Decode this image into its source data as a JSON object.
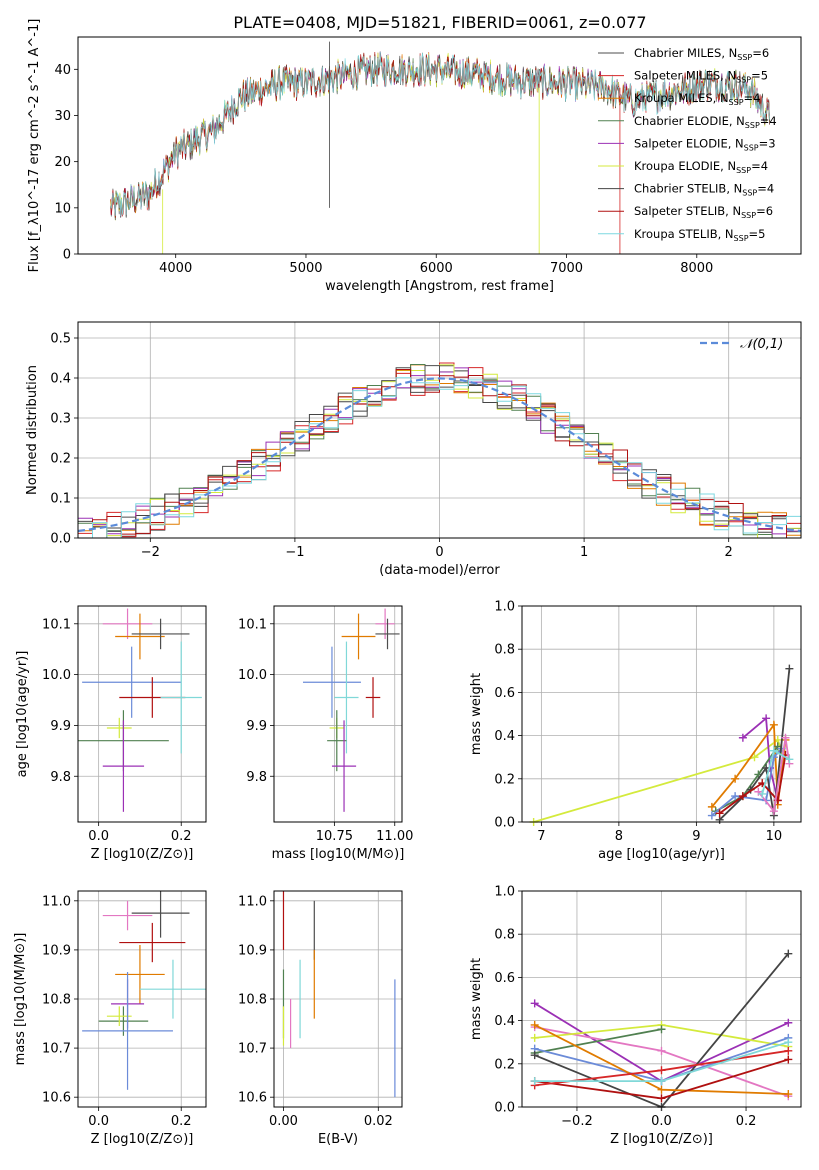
{
  "figure_title": "PLATE=0408, MJD=51821, FIBERID=0061, z=0.077",
  "colors": {
    "c0": "#4d4d4d",
    "c1": "#d62728",
    "c2": "#e07b00",
    "c3": "#508050",
    "c4": "#9b30b5",
    "c5": "#d4ea3c",
    "c6": "#444444",
    "c7": "#b01010",
    "c8": "#7dd8e0",
    "c9": "#e377c2",
    "c10": "#6b8bd8",
    "c11": "#80d8d8",
    "normal": "#5b8bd9"
  },
  "chart_data": [
    {
      "id": "spectrum",
      "type": "line",
      "title": "",
      "xlabel": "wavelength [Angstrom, rest frame]",
      "ylabel": "Flux [f_λ10^-17 erg cm^-2 s^-1 A^-1]",
      "xlim": [
        3250,
        8800
      ],
      "ylim": [
        0,
        47
      ],
      "xticks": [
        4000,
        5000,
        6000,
        7000,
        8000
      ],
      "yticks": [
        0,
        10,
        20,
        30,
        40
      ],
      "grid": false,
      "legend_position": "top-right",
      "continuum_points": [
        [
          3500,
          10
        ],
        [
          3800,
          13
        ],
        [
          4000,
          22
        ],
        [
          4300,
          27
        ],
        [
          4500,
          34
        ],
        [
          4800,
          37
        ],
        [
          5000,
          37
        ],
        [
          5200,
          38
        ],
        [
          5500,
          40
        ],
        [
          5800,
          40
        ],
        [
          6000,
          40
        ],
        [
          6300,
          39
        ],
        [
          6600,
          37.5
        ],
        [
          7000,
          37
        ],
        [
          7300,
          36
        ],
        [
          7500,
          33
        ],
        [
          7800,
          35
        ],
        [
          8100,
          37
        ],
        [
          8400,
          36
        ],
        [
          8550,
          30
        ]
      ],
      "series": [
        {
          "name": "Chabrier MILES, N_SSP=6",
          "color_key": "c0"
        },
        {
          "name": "Salpeter MILES, N_SSP=5",
          "color_key": "c1"
        },
        {
          "name": "Kroupa MILES, N_SSP=4",
          "color_key": "c2"
        },
        {
          "name": "Chabrier ELODIE, N_SSP=4",
          "color_key": "c3"
        },
        {
          "name": "Salpeter ELODIE, N_SSP=3",
          "color_key": "c4"
        },
        {
          "name": "Kroupa ELODIE, N_SSP=4",
          "color_key": "c5"
        },
        {
          "name": "Chabrier STELIB, N_SSP=4",
          "color_key": "c6"
        },
        {
          "name": "Salpeter STELIB, N_SSP=6",
          "color_key": "c7"
        },
        {
          "name": "Kroupa STELIB, N_SSP=5",
          "color_key": "c8"
        }
      ]
    },
    {
      "id": "residuals",
      "type": "histogram",
      "title": "",
      "xlabel": "(data-model)/error",
      "ylabel": "Normed distribution",
      "xlim": [
        -2.5,
        2.5
      ],
      "ylim": [
        0,
        0.54
      ],
      "xticks": [
        -2,
        -1,
        0,
        1,
        2
      ],
      "yticks": [
        0.0,
        0.1,
        0.2,
        0.3,
        0.4,
        0.5
      ],
      "grid": true,
      "legend_position": "top-right",
      "reference_curve": {
        "name": "𝒩(0,1)",
        "mean": 0,
        "sigma": 1
      },
      "bin_width": 0.1
    },
    {
      "id": "age_vs_Z",
      "type": "scatter",
      "xlabel": "Z [log10(Z/Z⊙)]",
      "ylabel": "age  [log10(age/yr)]",
      "xlim": [
        -0.05,
        0.26
      ],
      "ylim": [
        9.71,
        10.135
      ],
      "xticks": [
        0.0,
        0.2
      ],
      "yticks": [
        9.8,
        9.9,
        10.0,
        10.1
      ],
      "grid": true,
      "points": [
        {
          "x": 0.07,
          "y": 10.1,
          "xerr": 0.06,
          "yerr": 0.03,
          "color_key": "c9"
        },
        {
          "x": 0.1,
          "y": 10.075,
          "xerr": 0.06,
          "yerr": 0.045,
          "color_key": "c2"
        },
        {
          "x": 0.15,
          "y": 10.08,
          "xerr": 0.07,
          "yerr": 0.03,
          "color_key": "c0"
        },
        {
          "x": 0.08,
          "y": 9.985,
          "xerr": 0.12,
          "yerr": 0.07,
          "color_key": "c10"
        },
        {
          "x": 0.13,
          "y": 9.955,
          "xerr": 0.08,
          "yerr": 0.04,
          "color_key": "c7"
        },
        {
          "x": 0.2,
          "y": 9.955,
          "xerr": 0.05,
          "yerr": 0.11,
          "color_key": "c11"
        },
        {
          "x": 0.05,
          "y": 9.895,
          "xerr": 0.03,
          "yerr": 0.02,
          "color_key": "c5"
        },
        {
          "x": 0.06,
          "y": 9.87,
          "xerr": 0.11,
          "yerr": 0.06,
          "color_key": "c3"
        },
        {
          "x": 0.06,
          "y": 9.82,
          "xerr": 0.05,
          "yerr": 0.09,
          "color_key": "c4"
        }
      ]
    },
    {
      "id": "age_vs_mass",
      "type": "scatter",
      "xlabel": "mass [log10(M/M⊙)]",
      "ylabel": "",
      "xlim": [
        10.5,
        11.03
      ],
      "ylim": [
        9.71,
        10.135
      ],
      "xticks": [
        10.75,
        11.0
      ],
      "yticks": [
        9.8,
        9.9,
        10.0,
        10.1
      ],
      "grid": true,
      "points": [
        {
          "x": 10.96,
          "y": 10.1,
          "xerr": 0.04,
          "yerr": 0.03,
          "color_key": "c9"
        },
        {
          "x": 10.85,
          "y": 10.075,
          "xerr": 0.07,
          "yerr": 0.045,
          "color_key": "c2"
        },
        {
          "x": 10.97,
          "y": 10.08,
          "xerr": 0.05,
          "yerr": 0.03,
          "color_key": "c0"
        },
        {
          "x": 10.74,
          "y": 9.985,
          "xerr": 0.12,
          "yerr": 0.07,
          "color_key": "c10"
        },
        {
          "x": 10.91,
          "y": 9.955,
          "xerr": 0.03,
          "yerr": 0.04,
          "color_key": "c7"
        },
        {
          "x": 10.8,
          "y": 9.955,
          "xerr": 0.05,
          "yerr": 0.11,
          "color_key": "c11"
        },
        {
          "x": 10.76,
          "y": 9.895,
          "xerr": 0.03,
          "yerr": 0.02,
          "color_key": "c5"
        },
        {
          "x": 10.76,
          "y": 9.87,
          "xerr": 0.04,
          "yerr": 0.06,
          "color_key": "c3"
        },
        {
          "x": 10.79,
          "y": 9.82,
          "xerr": 0.05,
          "yerr": 0.09,
          "color_key": "c4"
        }
      ]
    },
    {
      "id": "mass_weight_vs_age",
      "type": "line",
      "xlabel": "age  [log10(age/yr)]",
      "ylabel": "mass weight",
      "xlim": [
        6.75,
        10.35
      ],
      "ylim": [
        0,
        1.0
      ],
      "xticks": [
        7,
        8,
        9,
        10
      ],
      "yticks": [
        0.0,
        0.2,
        0.4,
        0.6,
        0.8,
        1.0
      ],
      "grid": true,
      "series": [
        {
          "color_key": "c5",
          "x": [
            6.9,
            9.75,
            10.05,
            10.1
          ],
          "y": [
            0.0,
            0.3,
            0.38,
            0.33
          ]
        },
        {
          "color_key": "c4",
          "x": [
            9.6,
            9.9,
            9.95,
            10.05
          ],
          "y": [
            0.39,
            0.48,
            0.25,
            0.1
          ]
        },
        {
          "color_key": "c2",
          "x": [
            9.2,
            9.5,
            10.0,
            10.05,
            10.15
          ],
          "y": [
            0.07,
            0.2,
            0.45,
            0.08,
            0.38
          ]
        },
        {
          "color_key": "c3",
          "x": [
            9.25,
            9.6,
            9.8,
            10.05
          ],
          "y": [
            0.05,
            0.12,
            0.22,
            0.35
          ]
        },
        {
          "color_key": "c10",
          "x": [
            9.2,
            9.5,
            9.9,
            10.0,
            10.1
          ],
          "y": [
            0.03,
            0.12,
            0.1,
            0.3,
            0.34
          ]
        },
        {
          "color_key": "c6",
          "x": [
            9.3,
            9.7,
            9.9,
            10.0,
            10.2
          ],
          "y": [
            0.01,
            0.15,
            0.25,
            0.03,
            0.71
          ]
        },
        {
          "color_key": "c7",
          "x": [
            9.3,
            9.6,
            9.85,
            10.05,
            10.15
          ],
          "y": [
            0.04,
            0.12,
            0.18,
            0.1,
            0.31
          ]
        },
        {
          "color_key": "c9",
          "x": [
            9.8,
            10.0,
            10.15,
            10.2
          ],
          "y": [
            0.14,
            0.05,
            0.39,
            0.27
          ]
        },
        {
          "color_key": "c11",
          "x": [
            9.85,
            10.0,
            10.2
          ],
          "y": [
            0.13,
            0.33,
            0.29
          ]
        }
      ]
    },
    {
      "id": "mass_vs_Z",
      "type": "scatter",
      "xlabel": "Z [log10(Z/Z⊙)]",
      "ylabel": "mass [log10(M/M⊙)]",
      "xlim": [
        -0.05,
        0.26
      ],
      "ylim": [
        10.58,
        11.02
      ],
      "xticks": [
        0.0,
        0.2
      ],
      "yticks": [
        10.6,
        10.7,
        10.8,
        10.9,
        11.0
      ],
      "grid": true,
      "points": [
        {
          "x": 0.07,
          "y": 10.97,
          "xerr": 0.06,
          "yerr": 0.03,
          "color_key": "c9"
        },
        {
          "x": 0.15,
          "y": 10.975,
          "xerr": 0.07,
          "yerr": 0.05,
          "color_key": "c0"
        },
        {
          "x": 0.13,
          "y": 10.915,
          "xerr": 0.08,
          "yerr": 0.04,
          "color_key": "c7"
        },
        {
          "x": 0.1,
          "y": 10.85,
          "xerr": 0.06,
          "yerr": 0.06,
          "color_key": "c2"
        },
        {
          "x": 0.18,
          "y": 10.82,
          "xerr": 0.08,
          "yerr": 0.06,
          "color_key": "c11"
        },
        {
          "x": 0.07,
          "y": 10.79,
          "xerr": 0.04,
          "yerr": 0.05,
          "color_key": "c4"
        },
        {
          "x": 0.06,
          "y": 10.755,
          "xerr": 0.06,
          "yerr": 0.03,
          "color_key": "c3"
        },
        {
          "x": 0.05,
          "y": 10.765,
          "xerr": 0.03,
          "yerr": 0.02,
          "color_key": "c5"
        },
        {
          "x": 0.07,
          "y": 10.735,
          "xerr": 0.11,
          "yerr": 0.12,
          "color_key": "c10"
        }
      ]
    },
    {
      "id": "mass_vs_EBV",
      "type": "scatter",
      "xlabel": "E(B-V)",
      "ylabel": "",
      "xlim": [
        -0.002,
        0.025
      ],
      "ylim": [
        10.58,
        11.02
      ],
      "xticks": [
        0.0,
        0.02
      ],
      "yticks": [
        10.6,
        10.7,
        10.8,
        10.9,
        11.0
      ],
      "grid": true,
      "points": [
        {
          "x": 0.0,
          "y": 10.97,
          "xerr": 0,
          "yerr": 0.07,
          "color_key": "c7"
        },
        {
          "x": 0.0,
          "y": 10.79,
          "xerr": 0,
          "yerr": 0.07,
          "color_key": "c3"
        },
        {
          "x": 0.0,
          "y": 10.745,
          "xerr": 0,
          "yerr": 0.04,
          "color_key": "c5"
        },
        {
          "x": 0.0015,
          "y": 10.75,
          "xerr": 0,
          "yerr": 0.05,
          "color_key": "c9"
        },
        {
          "x": 0.0035,
          "y": 10.8,
          "xerr": 0,
          "yerr": 0.08,
          "color_key": "c11"
        },
        {
          "x": 0.0065,
          "y": 10.94,
          "xerr": 0,
          "yerr": 0.06,
          "color_key": "c0"
        },
        {
          "x": 0.0065,
          "y": 10.83,
          "xerr": 0,
          "yerr": 0.07,
          "color_key": "c2"
        },
        {
          "x": 0.0235,
          "y": 10.72,
          "xerr": 0,
          "yerr": 0.12,
          "color_key": "c10"
        }
      ]
    },
    {
      "id": "mass_weight_vs_Z",
      "type": "line",
      "xlabel": "Z [log10(Z/Z⊙)]",
      "ylabel": "mass weight",
      "xlim": [
        -0.33,
        0.33
      ],
      "ylim": [
        0,
        1.0
      ],
      "xticks": [
        -0.2,
        0.0,
        0.2
      ],
      "yticks": [
        0.0,
        0.2,
        0.4,
        0.6,
        0.8,
        1.0
      ],
      "grid": true,
      "series": [
        {
          "color_key": "c4",
          "x": [
            -0.3,
            0.0,
            0.3
          ],
          "y": [
            0.48,
            0.12,
            0.39
          ]
        },
        {
          "color_key": "c9",
          "x": [
            -0.3,
            0.0,
            0.3
          ],
          "y": [
            0.37,
            0.26,
            0.05
          ]
        },
        {
          "color_key": "c5",
          "x": [
            -0.3,
            0.0,
            0.3
          ],
          "y": [
            0.32,
            0.38,
            0.28
          ]
        },
        {
          "color_key": "c3",
          "x": [
            -0.3,
            0.0
          ],
          "y": [
            0.25,
            0.36
          ]
        },
        {
          "color_key": "c10",
          "x": [
            -0.3,
            0.0,
            0.3
          ],
          "y": [
            0.27,
            0.12,
            0.32
          ]
        },
        {
          "color_key": "c6",
          "x": [
            -0.3,
            0.0,
            0.3
          ],
          "y": [
            0.24,
            0.0,
            0.71
          ]
        },
        {
          "color_key": "c2",
          "x": [
            -0.3,
            0.0,
            0.3
          ],
          "y": [
            0.38,
            0.08,
            0.06
          ]
        },
        {
          "color_key": "c7",
          "x": [
            -0.3,
            0.0,
            0.3
          ],
          "y": [
            0.12,
            0.04,
            0.22
          ]
        },
        {
          "color_key": "c1",
          "x": [
            -0.3,
            0.0,
            0.3
          ],
          "y": [
            0.1,
            0.17,
            0.26
          ]
        },
        {
          "color_key": "c11",
          "x": [
            -0.3,
            0.0,
            0.3
          ],
          "y": [
            0.12,
            0.12,
            0.3
          ]
        }
      ]
    }
  ]
}
